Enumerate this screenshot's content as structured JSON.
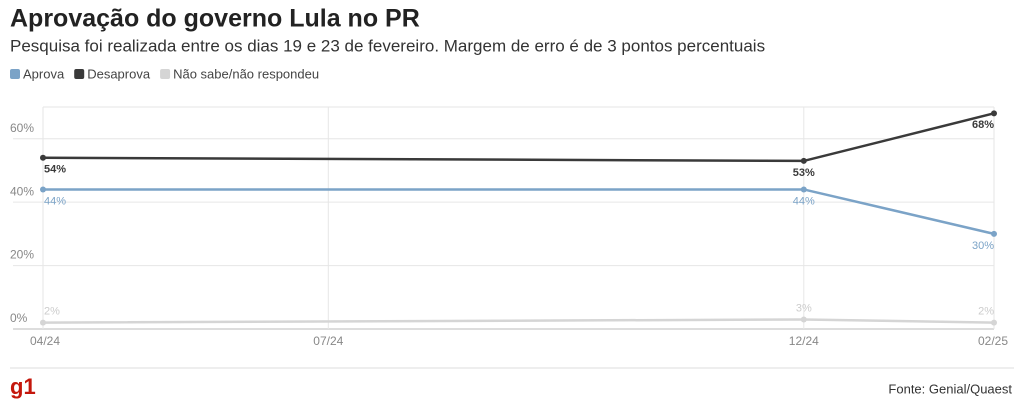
{
  "chart_data": {
    "type": "line",
    "title": "Aprovação do governo Lula no PR",
    "subtitle": "Pesquisa foi realizada entre os dias 19 e 23 de fevereiro. Margem de erro é de 3 pontos percentuais",
    "x": [
      "04/24",
      "12/24",
      "02/25"
    ],
    "xticks": [
      "04/24",
      "07/24",
      "12/24",
      "02/25"
    ],
    "xlim": [
      "04/24",
      "02/25"
    ],
    "ylim": [
      0,
      70
    ],
    "yticks": [
      {
        "value": 0,
        "label": "0%"
      },
      {
        "value": 20,
        "label": "20%"
      },
      {
        "value": 40,
        "label": "40%"
      },
      {
        "value": 60,
        "label": "60%"
      }
    ],
    "grid": true,
    "series": [
      {
        "name": "Aprova",
        "color": "#7ba3c7",
        "values": [
          44,
          44,
          30
        ],
        "value_labels": [
          "44%",
          "44%",
          "30%"
        ]
      },
      {
        "name": "Desaprova",
        "color": "#3a3a3a",
        "values": [
          54,
          53,
          68
        ],
        "value_labels": [
          "54%",
          "53%",
          "68%"
        ]
      },
      {
        "name": "Não sabe/não respondeu",
        "color": "#d5d5d5",
        "values": [
          2,
          3,
          2
        ],
        "value_labels": [
          "2%",
          "3%",
          "2%"
        ]
      }
    ],
    "logo": "g1",
    "source": "Fonte: Genial/Quaest"
  }
}
